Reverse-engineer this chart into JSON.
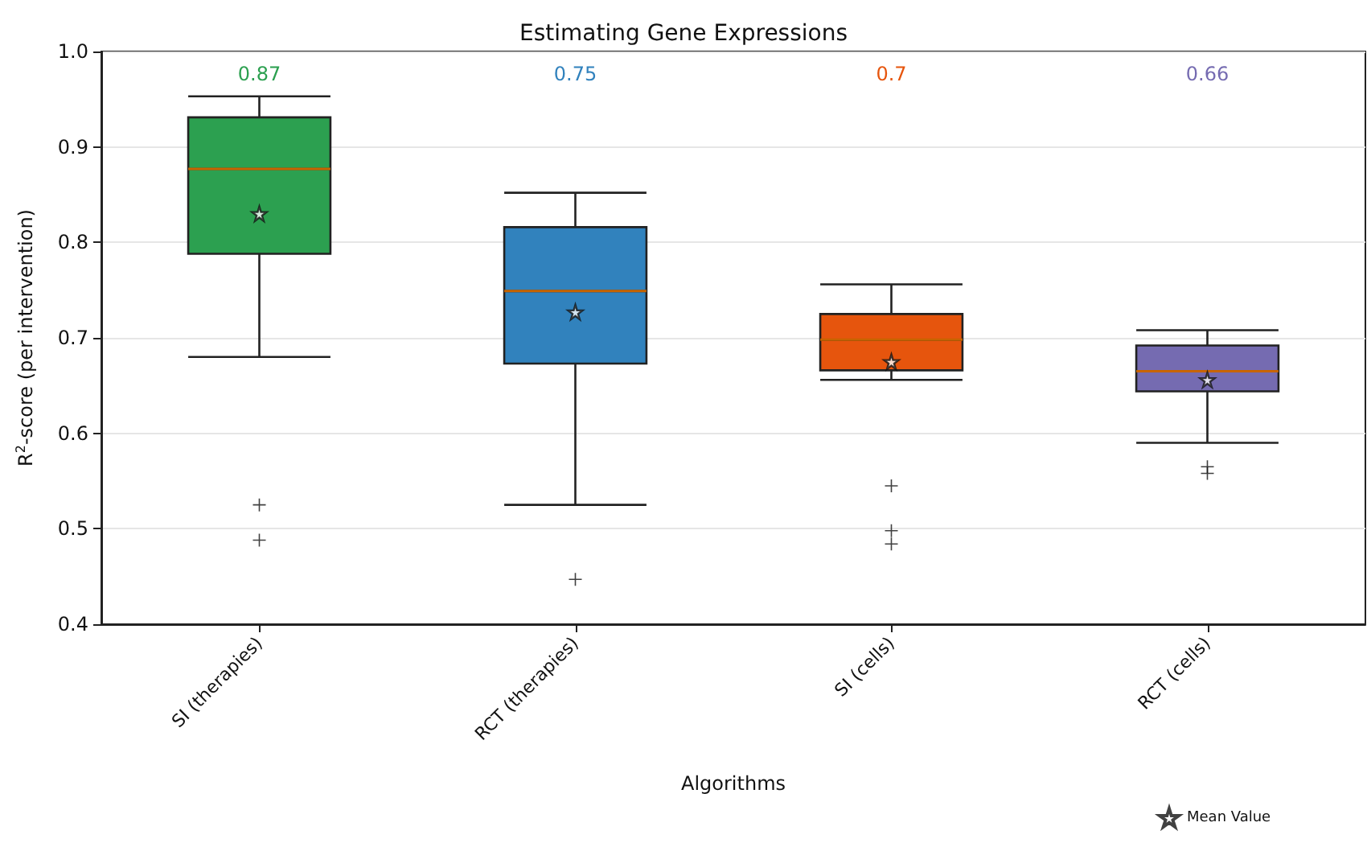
{
  "chart_data": {
    "type": "box",
    "title": "Estimating Gene Expressions",
    "xlabel": "Algorithms",
    "ylabel": "R$^{2}$-score (per intervention)",
    "categories": [
      "SI (therapies)",
      "RCT (therapies)",
      "SI (cells)",
      "RCT (cells)"
    ],
    "series": [
      {
        "colors": [
          "#2ca050",
          "#3182bd",
          "#e6550d",
          "#756bb1"
        ],
        "boxes": [
          {
            "low": 0.68,
            "q1": 0.788,
            "median": 0.877,
            "q3": 0.931,
            "high": 0.953,
            "outliers": [
              0.525,
              0.488
            ]
          },
          {
            "low": 0.525,
            "q1": 0.673,
            "median": 0.749,
            "q3": 0.816,
            "high": 0.852,
            "outliers": [
              0.447
            ]
          },
          {
            "low": 0.656,
            "q1": 0.666,
            "median": 0.698,
            "q3": 0.725,
            "high": 0.756,
            "outliers": [
              0.545,
              0.498,
              0.484
            ]
          },
          {
            "low": 0.59,
            "q1": 0.644,
            "median": 0.665,
            "q3": 0.692,
            "high": 0.708,
            "outliers": [
              0.565,
              0.558
            ]
          }
        ]
      },
      {
        "type": "scatter",
        "name": "Mean Value",
        "color": "#ffffff",
        "marker": "star",
        "x": [
          "SI (therapies)",
          "RCT (therapies)",
          "SI (cells)",
          "RCT (cells)"
        ],
        "values": [
          0.83,
          0.727,
          0.675,
          0.656
        ]
      }
    ],
    "annotations": [
      "0.87",
      "0.75",
      "0.7",
      "0.66"
    ],
    "ylim": [
      0.4,
      1.0
    ],
    "yticks": [
      {
        "value": 0.4,
        "label": "0.4"
      },
      {
        "value": 0.5,
        "label": "0.5"
      },
      {
        "value": 0.6,
        "label": "0.6"
      },
      {
        "value": 0.7,
        "label": "0.7"
      },
      {
        "value": 0.8,
        "label": "0.8"
      },
      {
        "value": 0.9,
        "label": "0.9"
      },
      {
        "value": 1.0,
        "label": "1.0"
      }
    ],
    "grid": "y",
    "legend": "bottom right"
  }
}
